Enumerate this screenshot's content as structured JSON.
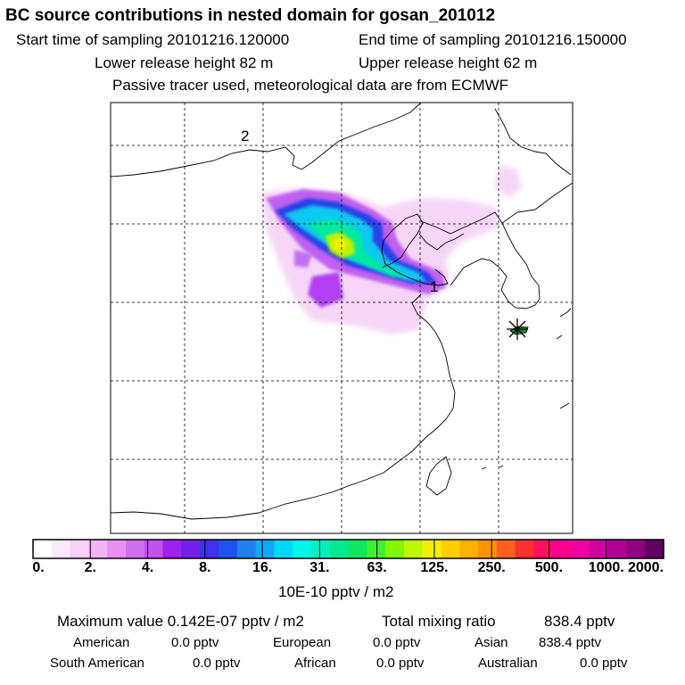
{
  "header": {
    "title": "BC  source contributions in nested domain for gosan_201012",
    "start_label": "Start time of sampling 20101216.120000",
    "end_label": "End time of sampling 20101216.150000",
    "lower_label": "Lower release height   82 m",
    "upper_label": "Upper release height   62 m",
    "tracer_note": "Passive tracer used, meteorological data are from ECMWF"
  },
  "map": {
    "receptor_marker": "asterisk-icon",
    "label_1": "1",
    "label_2": "2"
  },
  "colorbar": {
    "labels": [
      "0.",
      "2.",
      "4.",
      "8.",
      "16.",
      "31.",
      "63.",
      "125.",
      "250.",
      "500.",
      "1000.",
      "2000."
    ],
    "unit": "10E-10 pptv / m2",
    "colors": [
      "#ffffff",
      "#fce8fc",
      "#f8d0f8",
      "#f0b4f0",
      "#e890f0",
      "#d070f0",
      "#c050f0",
      "#a020f0",
      "#7020e8",
      "#4030f0",
      "#2050f0",
      "#2080f0",
      "#10a8f8",
      "#00d8f8",
      "#00f8e8",
      "#00f0c0",
      "#00e890",
      "#10e860",
      "#40f030",
      "#80f800",
      "#c0f800",
      "#f0f000",
      "#ffd000",
      "#ffb000",
      "#ff9000",
      "#ff6020",
      "#ff3030",
      "#ff1060",
      "#ff0090",
      "#f000a0",
      "#d000a0",
      "#b00090",
      "#900080",
      "#600060"
    ]
  },
  "summary": {
    "max_label": "Maximum value  0.142E-07 pptv / m2",
    "total_label": "Total mixing ratio",
    "total_value": "838.4 pptv",
    "american_label": "American",
    "american_value": "0.0 pptv",
    "european_label": "European",
    "european_value": "0.0 pptv",
    "asian_label": "Asian",
    "asian_value": "838.4 pptv",
    "south_american_label": "South American",
    "south_american_value": "0.0 pptv",
    "african_label": "African",
    "african_value": "0.0 pptv",
    "australian_label": "Australian",
    "australian_value": "0.0 pptv"
  }
}
